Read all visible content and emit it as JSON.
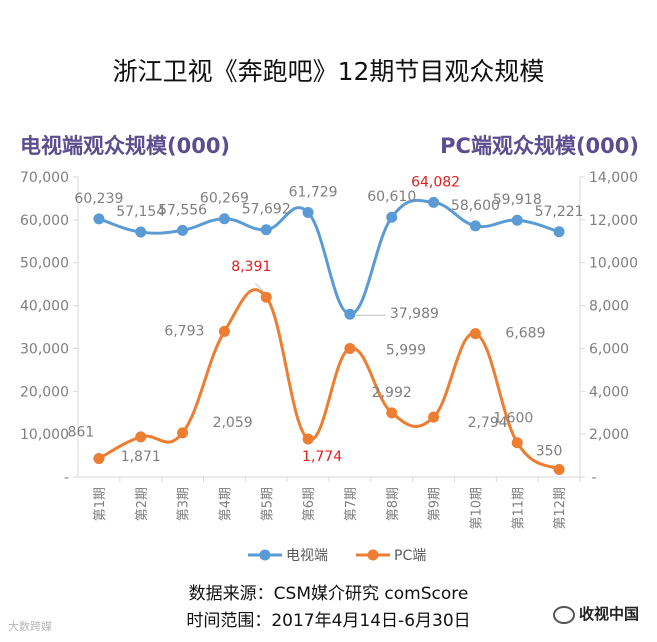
{
  "title": "浙江卫视《奔跑吧》12期节目观众规模",
  "left_axis_title": "电视端观众规模(000)",
  "right_axis_title": "PC端观众规模(000)",
  "source": "数据来源：CSM媒介研究 comScore",
  "period": "时间范围：2017年4月14日-6月30日",
  "watermark_left": "大数跨媒",
  "watermark_right": "收视中国",
  "colors": {
    "tv": "#5b9bd5",
    "pc": "#ed7d31",
    "highlight": "#e0201f",
    "label": "#7f7f7f"
  },
  "chart_data": {
    "type": "line",
    "categories": [
      "第1期",
      "第2期",
      "第3期",
      "第4期",
      "第5期",
      "第6期",
      "第7期",
      "第8期",
      "第9期",
      "第10期",
      "第11期",
      "第12期"
    ],
    "y_left": {
      "ylim": [
        0,
        70000
      ],
      "ticks": [
        "-",
        "10,000",
        "20,000",
        "30,000",
        "40,000",
        "50,000",
        "60,000",
        "70,000"
      ]
    },
    "y_right": {
      "ylim": [
        0,
        14000
      ],
      "ticks": [
        "-",
        "2,000",
        "4,000",
        "6,000",
        "8,000",
        "10,000",
        "12,000",
        "14,000"
      ]
    },
    "series": [
      {
        "name": "电视端",
        "axis": "left",
        "values": [
          60239,
          57154,
          57556,
          60269,
          57692,
          61729,
          37989,
          60610,
          64082,
          58600,
          59918,
          57221
        ],
        "labels": [
          "60,239",
          "57,154",
          "57,556",
          "60,269",
          "57,692",
          "61,729",
          "37,989",
          "60,610",
          "64,082",
          "58,600",
          "59,918",
          "57,221"
        ],
        "highlight": [
          8
        ]
      },
      {
        "name": "PC端",
        "axis": "right",
        "values": [
          861,
          1871,
          2059,
          6793,
          8391,
          1774,
          5999,
          2992,
          2794,
          6689,
          1600,
          350
        ],
        "labels": [
          "861",
          "1,871",
          "2,059",
          "6,793",
          "8,391",
          "1,774",
          "5,999",
          "2,992",
          "2,794",
          "6,689",
          "1,600",
          "350"
        ],
        "highlight": [
          4,
          5
        ]
      }
    ],
    "legend": "bottom"
  }
}
